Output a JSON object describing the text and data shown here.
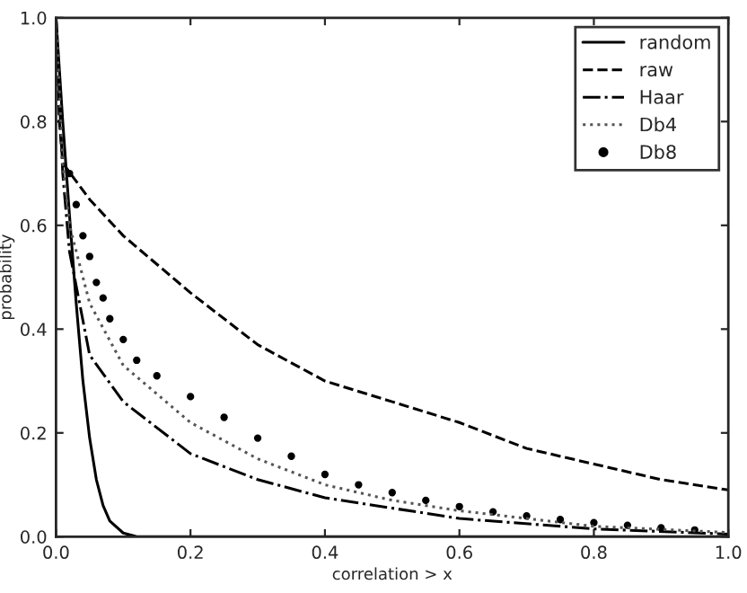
{
  "chart_data": {
    "type": "line",
    "xlabel": "correlation > x",
    "ylabel": "probability",
    "xlim": [
      0,
      1
    ],
    "ylim": [
      0,
      1
    ],
    "xticks": [
      {
        "value": 0,
        "label": "0.0"
      },
      {
        "value": 0.2,
        "label": "0.2"
      },
      {
        "value": 0.4,
        "label": "0.4"
      },
      {
        "value": 0.6,
        "label": "0.6"
      },
      {
        "value": 0.8,
        "label": "0.8"
      },
      {
        "value": 1,
        "label": "1.0"
      }
    ],
    "yticks": [
      {
        "value": 0,
        "label": "0.0"
      },
      {
        "value": 0.2,
        "label": "0.2"
      },
      {
        "value": 0.4,
        "label": "0.4"
      },
      {
        "value": 0.6,
        "label": "0.6"
      },
      {
        "value": 0.8,
        "label": "0.8"
      },
      {
        "value": 1,
        "label": "1.0"
      }
    ],
    "grid": false,
    "legend": "top right",
    "series": [
      {
        "name": "random",
        "color": "#000000",
        "line_style": "solid",
        "x": [
          0,
          0.01,
          0.02,
          0.03,
          0.04,
          0.05,
          0.06,
          0.07,
          0.08,
          0.1,
          0.12,
          0.2,
          0.4,
          0.6,
          0.8,
          1.0
        ],
        "values": [
          1,
          0.8,
          0.62,
          0.45,
          0.3,
          0.19,
          0.11,
          0.06,
          0.03,
          0.007,
          0,
          0,
          0,
          0,
          0,
          0
        ]
      },
      {
        "name": "raw",
        "color": "#000000",
        "line_style": "dashed",
        "x": [
          0,
          0.005,
          0.01,
          0.05,
          0.1,
          0.2,
          0.3,
          0.4,
          0.5,
          0.6,
          0.7,
          0.8,
          0.9,
          1.0
        ],
        "values": [
          1,
          0.8,
          0.72,
          0.65,
          0.58,
          0.47,
          0.37,
          0.3,
          0.26,
          0.22,
          0.17,
          0.14,
          0.11,
          0.09
        ]
      },
      {
        "name": "Haar",
        "color": "#000000",
        "line_style": "dashdot",
        "x": [
          0,
          0.01,
          0.02,
          0.05,
          0.1,
          0.2,
          0.3,
          0.4,
          0.5,
          0.6,
          0.8,
          1.0
        ],
        "values": [
          1,
          0.7,
          0.55,
          0.35,
          0.26,
          0.16,
          0.11,
          0.075,
          0.055,
          0.035,
          0.015,
          0.005
        ]
      },
      {
        "name": "Db4",
        "color": "#555555",
        "line_style": "dotted",
        "x": [
          0,
          0.01,
          0.02,
          0.05,
          0.1,
          0.2,
          0.3,
          0.4,
          0.5,
          0.6,
          0.8,
          1.0
        ],
        "values": [
          1,
          0.72,
          0.6,
          0.45,
          0.33,
          0.22,
          0.15,
          0.1,
          0.07,
          0.05,
          0.02,
          0.008
        ]
      },
      {
        "name": "Db8",
        "type": "scatter",
        "marker": "circle",
        "color": "#000000",
        "x": [
          0.02,
          0.03,
          0.04,
          0.05,
          0.06,
          0.07,
          0.08,
          0.1,
          0.12,
          0.15,
          0.2,
          0.25,
          0.3,
          0.35,
          0.4,
          0.45,
          0.5,
          0.55,
          0.6,
          0.65,
          0.7,
          0.75,
          0.8,
          0.85,
          0.9,
          0.95
        ],
        "values": [
          0.7,
          0.64,
          0.58,
          0.54,
          0.49,
          0.46,
          0.42,
          0.38,
          0.34,
          0.31,
          0.27,
          0.23,
          0.19,
          0.155,
          0.12,
          0.1,
          0.085,
          0.07,
          0.058,
          0.048,
          0.04,
          0.033,
          0.027,
          0.022,
          0.017,
          0.013
        ]
      }
    ]
  }
}
